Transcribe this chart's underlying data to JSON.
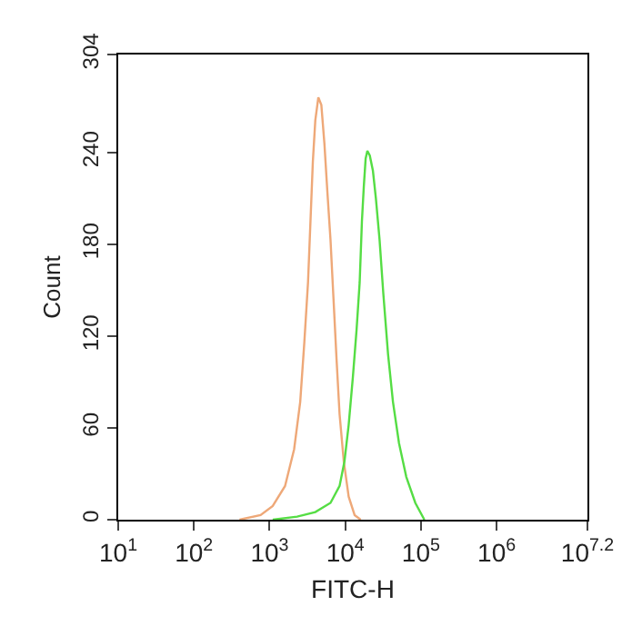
{
  "chart_data": {
    "type": "line",
    "xlabel": "FITC-H",
    "ylabel": "Count",
    "log": "x",
    "xlim": [
      10,
      15850000
    ],
    "xticks": [
      {
        "value": 10,
        "label": "10$^{1}$"
      },
      {
        "value": 100,
        "label": "10$^{2}$"
      },
      {
        "value": 1000,
        "label": "10$^{3}$"
      },
      {
        "value": 10000,
        "label": "10$^{4}$"
      },
      {
        "value": 100000,
        "label": "10$^{5}$"
      },
      {
        "value": 1000000,
        "label": "10$^{6}$"
      },
      {
        "value": 15850000,
        "label": "10$^{7.2}$"
      }
    ],
    "ylim": [
      0,
      304
    ],
    "yticks": [
      0,
      60,
      120,
      180,
      240,
      304
    ],
    "grid": false,
    "marker": "none",
    "line_style": "solid",
    "series": [
      {
        "color": "#eea878",
        "x": [
          400,
          760,
          1100,
          1600,
          2110,
          2540,
          2880,
          3220,
          3470,
          3730,
          4020,
          4410,
          4830,
          5300,
          5810,
          6380,
          7000,
          7670,
          8410,
          9570,
          11100,
          13300,
          16000
        ],
        "values": [
          0,
          3,
          9,
          22,
          46,
          77,
          116,
          155,
          195,
          234,
          261,
          276,
          271,
          246,
          214,
          183,
          144,
          105,
          69,
          38,
          15,
          3,
          0
        ]
      },
      {
        "color": "#55dd44",
        "x": [
          1100,
          2310,
          4020,
          6380,
          8410,
          9750,
          11100,
          12600,
          14100,
          15500,
          16600,
          17600,
          18600,
          19600,
          21100,
          23200,
          25400,
          28400,
          31800,
          36800,
          42700,
          51300,
          64000,
          84300,
          111000
        ],
        "values": [
          0,
          2,
          5,
          11,
          22,
          38,
          62,
          93,
          124,
          155,
          195,
          218,
          236,
          241,
          238,
          228,
          210,
          183,
          148,
          108,
          77,
          50,
          28,
          11,
          0
        ]
      }
    ]
  }
}
